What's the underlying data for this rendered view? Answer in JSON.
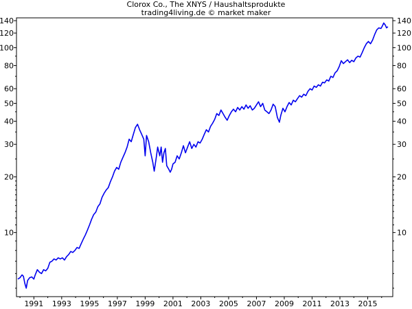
{
  "chart_data": {
    "type": "line",
    "title": "Clorox Co., The XNYS / Haushaltsprodukte",
    "subtitle": "trading4living.de © market maker",
    "y_scale": "log",
    "ylim": [
      4.5,
      145
    ],
    "xlim": [
      1989.75,
      2016.8
    ],
    "y_ticks": [
      10,
      20,
      30,
      40,
      50,
      60,
      80,
      100,
      120,
      140
    ],
    "y_minor_ticks": [
      5,
      6,
      7,
      8,
      9,
      11,
      12,
      13,
      14,
      15,
      16,
      17,
      18,
      19,
      25,
      35,
      45,
      70,
      90
    ],
    "x_tick_labels": [
      "1991",
      "1993",
      "1995",
      "1997",
      "1999",
      "2001",
      "2003",
      "2005",
      "2007",
      "2009",
      "2011",
      "2013",
      "2015"
    ],
    "x_ticks": [
      1991,
      1993,
      1995,
      1997,
      1999,
      2001,
      2003,
      2005,
      2007,
      2009,
      2011,
      2013,
      2015
    ],
    "grid": false,
    "line_color": "#0000ee",
    "series": [
      {
        "points": [
          [
            1989.85,
            5.6
          ],
          [
            1990.0,
            5.7
          ],
          [
            1990.15,
            5.9
          ],
          [
            1990.25,
            5.8
          ],
          [
            1990.35,
            5.3
          ],
          [
            1990.45,
            5.0
          ],
          [
            1990.55,
            5.5
          ],
          [
            1990.7,
            5.7
          ],
          [
            1990.85,
            5.75
          ],
          [
            1991.0,
            5.6
          ],
          [
            1991.1,
            5.9
          ],
          [
            1991.25,
            6.3
          ],
          [
            1991.4,
            6.1
          ],
          [
            1991.55,
            6.0
          ],
          [
            1991.7,
            6.3
          ],
          [
            1991.85,
            6.2
          ],
          [
            1992.0,
            6.4
          ],
          [
            1992.15,
            6.9
          ],
          [
            1992.3,
            7.0
          ],
          [
            1992.45,
            7.2
          ],
          [
            1992.6,
            7.1
          ],
          [
            1992.75,
            7.3
          ],
          [
            1992.9,
            7.2
          ],
          [
            1993.05,
            7.3
          ],
          [
            1993.2,
            7.1
          ],
          [
            1993.35,
            7.4
          ],
          [
            1993.5,
            7.6
          ],
          [
            1993.65,
            7.9
          ],
          [
            1993.8,
            7.8
          ],
          [
            1993.95,
            8.0
          ],
          [
            1994.1,
            8.3
          ],
          [
            1994.25,
            8.2
          ],
          [
            1994.4,
            8.7
          ],
          [
            1994.55,
            9.2
          ],
          [
            1994.7,
            9.7
          ],
          [
            1994.85,
            10.3
          ],
          [
            1995.0,
            11.0
          ],
          [
            1995.15,
            11.8
          ],
          [
            1995.3,
            12.5
          ],
          [
            1995.45,
            12.9
          ],
          [
            1995.6,
            13.8
          ],
          [
            1995.75,
            14.3
          ],
          [
            1995.9,
            15.5
          ],
          [
            1996.05,
            16.3
          ],
          [
            1996.2,
            17.0
          ],
          [
            1996.35,
            17.5
          ],
          [
            1996.5,
            18.8
          ],
          [
            1996.65,
            20.0
          ],
          [
            1996.8,
            21.5
          ],
          [
            1996.95,
            22.5
          ],
          [
            1997.1,
            22.0
          ],
          [
            1997.25,
            24.0
          ],
          [
            1997.4,
            25.5
          ],
          [
            1997.55,
            27.0
          ],
          [
            1997.7,
            29.0
          ],
          [
            1997.85,
            32.0
          ],
          [
            1998.0,
            31.0
          ],
          [
            1998.15,
            34.0
          ],
          [
            1998.3,
            37.0
          ],
          [
            1998.45,
            38.5
          ],
          [
            1998.6,
            36.0
          ],
          [
            1998.75,
            34.0
          ],
          [
            1998.9,
            32.0
          ],
          [
            1999.0,
            26.0
          ],
          [
            1999.1,
            33.5
          ],
          [
            1999.25,
            31.0
          ],
          [
            1999.4,
            27.0
          ],
          [
            1999.55,
            24.0
          ],
          [
            1999.65,
            21.5
          ],
          [
            1999.8,
            25.5
          ],
          [
            1999.9,
            29.0
          ],
          [
            2000.05,
            26.0
          ],
          [
            2000.15,
            29.0
          ],
          [
            2000.25,
            24.0
          ],
          [
            2000.35,
            27.0
          ],
          [
            2000.45,
            28.5
          ],
          [
            2000.55,
            23.0
          ],
          [
            2000.7,
            22.0
          ],
          [
            2000.8,
            21.2
          ],
          [
            2000.9,
            22.0
          ],
          [
            2001.0,
            23.5
          ],
          [
            2001.15,
            24.0
          ],
          [
            2001.3,
            26.0
          ],
          [
            2001.45,
            25.0
          ],
          [
            2001.6,
            27.0
          ],
          [
            2001.75,
            29.5
          ],
          [
            2001.9,
            27.0
          ],
          [
            2002.05,
            29.0
          ],
          [
            2002.2,
            31.0
          ],
          [
            2002.35,
            28.5
          ],
          [
            2002.5,
            30.0
          ],
          [
            2002.65,
            29.0
          ],
          [
            2002.8,
            31.0
          ],
          [
            2002.95,
            30.5
          ],
          [
            2003.1,
            32.0
          ],
          [
            2003.25,
            34.0
          ],
          [
            2003.4,
            36.0
          ],
          [
            2003.55,
            35.0
          ],
          [
            2003.7,
            37.5
          ],
          [
            2003.85,
            39.0
          ],
          [
            2004.0,
            41.0
          ],
          [
            2004.15,
            44.0
          ],
          [
            2004.3,
            43.0
          ],
          [
            2004.45,
            46.0
          ],
          [
            2004.6,
            44.0
          ],
          [
            2004.75,
            42.0
          ],
          [
            2004.9,
            40.5
          ],
          [
            2005.05,
            43.0
          ],
          [
            2005.2,
            45.0
          ],
          [
            2005.35,
            46.5
          ],
          [
            2005.5,
            45.0
          ],
          [
            2005.65,
            47.5
          ],
          [
            2005.8,
            46.0
          ],
          [
            2005.95,
            48.0
          ],
          [
            2006.1,
            46.5
          ],
          [
            2006.25,
            49.0
          ],
          [
            2006.4,
            47.0
          ],
          [
            2006.55,
            48.5
          ],
          [
            2006.7,
            46.0
          ],
          [
            2006.85,
            47.0
          ],
          [
            2007.0,
            49.0
          ],
          [
            2007.15,
            51.0
          ],
          [
            2007.3,
            48.0
          ],
          [
            2007.45,
            50.0
          ],
          [
            2007.6,
            46.0
          ],
          [
            2007.75,
            45.0
          ],
          [
            2007.9,
            44.0
          ],
          [
            2008.05,
            46.0
          ],
          [
            2008.2,
            49.5
          ],
          [
            2008.35,
            48.0
          ],
          [
            2008.5,
            42.0
          ],
          [
            2008.65,
            39.5
          ],
          [
            2008.75,
            43.0
          ],
          [
            2008.9,
            47.0
          ],
          [
            2009.05,
            45.0
          ],
          [
            2009.2,
            48.0
          ],
          [
            2009.35,
            50.5
          ],
          [
            2009.5,
            49.0
          ],
          [
            2009.65,
            52.0
          ],
          [
            2009.8,
            51.0
          ],
          [
            2009.95,
            53.0
          ],
          [
            2010.1,
            55.0
          ],
          [
            2010.25,
            54.0
          ],
          [
            2010.4,
            56.0
          ],
          [
            2010.55,
            55.0
          ],
          [
            2010.7,
            58.0
          ],
          [
            2010.85,
            60.0
          ],
          [
            2011.0,
            59.0
          ],
          [
            2011.15,
            62.0
          ],
          [
            2011.3,
            61.0
          ],
          [
            2011.45,
            63.0
          ],
          [
            2011.6,
            62.0
          ],
          [
            2011.75,
            65.0
          ],
          [
            2011.9,
            64.5
          ],
          [
            2012.05,
            67.0
          ],
          [
            2012.2,
            66.0
          ],
          [
            2012.35,
            70.0
          ],
          [
            2012.5,
            69.0
          ],
          [
            2012.65,
            73.0
          ],
          [
            2012.8,
            75.0
          ],
          [
            2012.95,
            79.0
          ],
          [
            2013.1,
            85.0
          ],
          [
            2013.25,
            82.0
          ],
          [
            2013.4,
            84.0
          ],
          [
            2013.55,
            86.0
          ],
          [
            2013.7,
            83.0
          ],
          [
            2013.85,
            85.5
          ],
          [
            2014.0,
            84.0
          ],
          [
            2014.15,
            88.0
          ],
          [
            2014.3,
            90.0
          ],
          [
            2014.45,
            89.0
          ],
          [
            2014.6,
            94.0
          ],
          [
            2014.75,
            100.0
          ],
          [
            2014.9,
            105.0
          ],
          [
            2015.05,
            108.0
          ],
          [
            2015.2,
            105.0
          ],
          [
            2015.35,
            110.0
          ],
          [
            2015.5,
            118.0
          ],
          [
            2015.65,
            125.0
          ],
          [
            2015.8,
            128.0
          ],
          [
            2015.95,
            127.0
          ],
          [
            2016.05,
            131.0
          ],
          [
            2016.15,
            136.0
          ],
          [
            2016.25,
            133.0
          ],
          [
            2016.35,
            128.0
          ],
          [
            2016.45,
            130.0
          ]
        ]
      }
    ]
  }
}
